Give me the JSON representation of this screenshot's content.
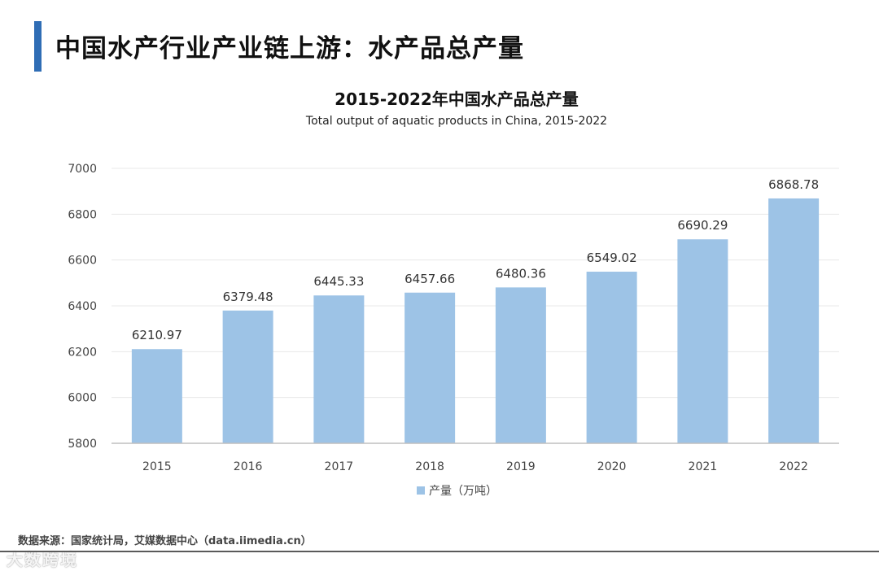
{
  "header": {
    "title": "中国水产行业产业链上游：水产品总产量",
    "accent_color": "#2f6db5"
  },
  "chart_data": {
    "type": "bar",
    "title": "2015-2022年中国水产品总产量",
    "subtitle": "Total output of aquatic products in China, 2015-2022",
    "categories": [
      "2015",
      "2016",
      "2017",
      "2018",
      "2019",
      "2020",
      "2021",
      "2022"
    ],
    "series": [
      {
        "name": "产量（万吨）",
        "values": [
          6210.97,
          6379.48,
          6445.33,
          6457.66,
          6480.36,
          6549.02,
          6690.29,
          6868.78
        ],
        "labels": [
          "6210.97",
          "6379.48",
          "6445.33",
          "6457.66",
          "6480.36",
          "6549.02",
          "6690.29",
          "6868.78"
        ],
        "color": "#9dc3e6"
      }
    ],
    "xlabel": "",
    "ylabel": "",
    "ylim": [
      5800,
      7000
    ],
    "yticks": [
      5800,
      6000,
      6200,
      6400,
      6600,
      6800,
      7000
    ],
    "grid": true,
    "legend": "bottom-center"
  },
  "footer": {
    "source": "数据来源：国家统计局，艾媒数据中心（data.iimedia.cn）",
    "watermark": "大数跨境",
    "line_color": "#5a5a5a"
  }
}
